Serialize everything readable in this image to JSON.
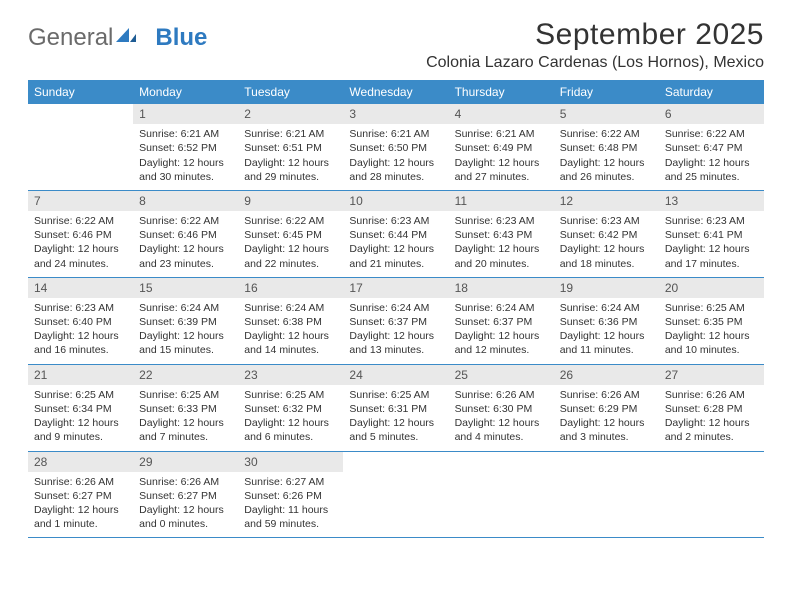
{
  "brand": {
    "word1": "General",
    "word2": "Blue"
  },
  "title": "September 2025",
  "location": "Colonia Lazaro Cardenas (Los Hornos), Mexico",
  "colors": {
    "header_bar": "#3b8bc8",
    "daynum_bg": "#e9e9e9",
    "text": "#333333",
    "logo_blue": "#2e7ac0",
    "logo_gray": "#6a6a6a",
    "background": "#ffffff"
  },
  "typography": {
    "title_fontsize": 30,
    "location_fontsize": 16,
    "dayhead_fontsize": 12,
    "cell_fontsize": 10.5
  },
  "day_names": [
    "Sunday",
    "Monday",
    "Tuesday",
    "Wednesday",
    "Thursday",
    "Friday",
    "Saturday"
  ],
  "weeks": [
    [
      {
        "n": "",
        "sunrise": "",
        "sunset": "",
        "daylight": ""
      },
      {
        "n": "1",
        "sunrise": "Sunrise: 6:21 AM",
        "sunset": "Sunset: 6:52 PM",
        "daylight": "Daylight: 12 hours and 30 minutes."
      },
      {
        "n": "2",
        "sunrise": "Sunrise: 6:21 AM",
        "sunset": "Sunset: 6:51 PM",
        "daylight": "Daylight: 12 hours and 29 minutes."
      },
      {
        "n": "3",
        "sunrise": "Sunrise: 6:21 AM",
        "sunset": "Sunset: 6:50 PM",
        "daylight": "Daylight: 12 hours and 28 minutes."
      },
      {
        "n": "4",
        "sunrise": "Sunrise: 6:21 AM",
        "sunset": "Sunset: 6:49 PM",
        "daylight": "Daylight: 12 hours and 27 minutes."
      },
      {
        "n": "5",
        "sunrise": "Sunrise: 6:22 AM",
        "sunset": "Sunset: 6:48 PM",
        "daylight": "Daylight: 12 hours and 26 minutes."
      },
      {
        "n": "6",
        "sunrise": "Sunrise: 6:22 AM",
        "sunset": "Sunset: 6:47 PM",
        "daylight": "Daylight: 12 hours and 25 minutes."
      }
    ],
    [
      {
        "n": "7",
        "sunrise": "Sunrise: 6:22 AM",
        "sunset": "Sunset: 6:46 PM",
        "daylight": "Daylight: 12 hours and 24 minutes."
      },
      {
        "n": "8",
        "sunrise": "Sunrise: 6:22 AM",
        "sunset": "Sunset: 6:46 PM",
        "daylight": "Daylight: 12 hours and 23 minutes."
      },
      {
        "n": "9",
        "sunrise": "Sunrise: 6:22 AM",
        "sunset": "Sunset: 6:45 PM",
        "daylight": "Daylight: 12 hours and 22 minutes."
      },
      {
        "n": "10",
        "sunrise": "Sunrise: 6:23 AM",
        "sunset": "Sunset: 6:44 PM",
        "daylight": "Daylight: 12 hours and 21 minutes."
      },
      {
        "n": "11",
        "sunrise": "Sunrise: 6:23 AM",
        "sunset": "Sunset: 6:43 PM",
        "daylight": "Daylight: 12 hours and 20 minutes."
      },
      {
        "n": "12",
        "sunrise": "Sunrise: 6:23 AM",
        "sunset": "Sunset: 6:42 PM",
        "daylight": "Daylight: 12 hours and 18 minutes."
      },
      {
        "n": "13",
        "sunrise": "Sunrise: 6:23 AM",
        "sunset": "Sunset: 6:41 PM",
        "daylight": "Daylight: 12 hours and 17 minutes."
      }
    ],
    [
      {
        "n": "14",
        "sunrise": "Sunrise: 6:23 AM",
        "sunset": "Sunset: 6:40 PM",
        "daylight": "Daylight: 12 hours and 16 minutes."
      },
      {
        "n": "15",
        "sunrise": "Sunrise: 6:24 AM",
        "sunset": "Sunset: 6:39 PM",
        "daylight": "Daylight: 12 hours and 15 minutes."
      },
      {
        "n": "16",
        "sunrise": "Sunrise: 6:24 AM",
        "sunset": "Sunset: 6:38 PM",
        "daylight": "Daylight: 12 hours and 14 minutes."
      },
      {
        "n": "17",
        "sunrise": "Sunrise: 6:24 AM",
        "sunset": "Sunset: 6:37 PM",
        "daylight": "Daylight: 12 hours and 13 minutes."
      },
      {
        "n": "18",
        "sunrise": "Sunrise: 6:24 AM",
        "sunset": "Sunset: 6:37 PM",
        "daylight": "Daylight: 12 hours and 12 minutes."
      },
      {
        "n": "19",
        "sunrise": "Sunrise: 6:24 AM",
        "sunset": "Sunset: 6:36 PM",
        "daylight": "Daylight: 12 hours and 11 minutes."
      },
      {
        "n": "20",
        "sunrise": "Sunrise: 6:25 AM",
        "sunset": "Sunset: 6:35 PM",
        "daylight": "Daylight: 12 hours and 10 minutes."
      }
    ],
    [
      {
        "n": "21",
        "sunrise": "Sunrise: 6:25 AM",
        "sunset": "Sunset: 6:34 PM",
        "daylight": "Daylight: 12 hours and 9 minutes."
      },
      {
        "n": "22",
        "sunrise": "Sunrise: 6:25 AM",
        "sunset": "Sunset: 6:33 PM",
        "daylight": "Daylight: 12 hours and 7 minutes."
      },
      {
        "n": "23",
        "sunrise": "Sunrise: 6:25 AM",
        "sunset": "Sunset: 6:32 PM",
        "daylight": "Daylight: 12 hours and 6 minutes."
      },
      {
        "n": "24",
        "sunrise": "Sunrise: 6:25 AM",
        "sunset": "Sunset: 6:31 PM",
        "daylight": "Daylight: 12 hours and 5 minutes."
      },
      {
        "n": "25",
        "sunrise": "Sunrise: 6:26 AM",
        "sunset": "Sunset: 6:30 PM",
        "daylight": "Daylight: 12 hours and 4 minutes."
      },
      {
        "n": "26",
        "sunrise": "Sunrise: 6:26 AM",
        "sunset": "Sunset: 6:29 PM",
        "daylight": "Daylight: 12 hours and 3 minutes."
      },
      {
        "n": "27",
        "sunrise": "Sunrise: 6:26 AM",
        "sunset": "Sunset: 6:28 PM",
        "daylight": "Daylight: 12 hours and 2 minutes."
      }
    ],
    [
      {
        "n": "28",
        "sunrise": "Sunrise: 6:26 AM",
        "sunset": "Sunset: 6:27 PM",
        "daylight": "Daylight: 12 hours and 1 minute."
      },
      {
        "n": "29",
        "sunrise": "Sunrise: 6:26 AM",
        "sunset": "Sunset: 6:27 PM",
        "daylight": "Daylight: 12 hours and 0 minutes."
      },
      {
        "n": "30",
        "sunrise": "Sunrise: 6:27 AM",
        "sunset": "Sunset: 6:26 PM",
        "daylight": "Daylight: 11 hours and 59 minutes."
      },
      {
        "n": "",
        "sunrise": "",
        "sunset": "",
        "daylight": ""
      },
      {
        "n": "",
        "sunrise": "",
        "sunset": "",
        "daylight": ""
      },
      {
        "n": "",
        "sunrise": "",
        "sunset": "",
        "daylight": ""
      },
      {
        "n": "",
        "sunrise": "",
        "sunset": "",
        "daylight": ""
      }
    ]
  ]
}
